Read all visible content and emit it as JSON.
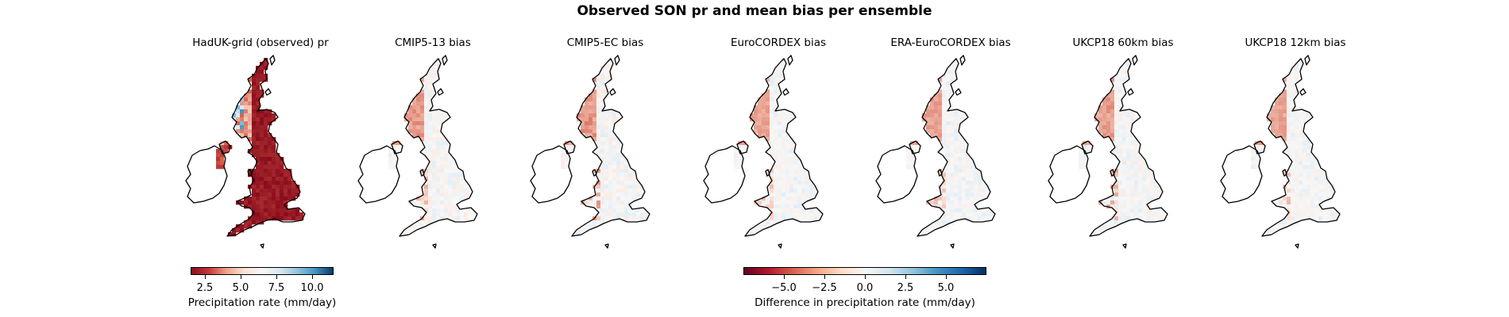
{
  "figure": {
    "title": "Observed SON pr and mean bias per ensemble"
  },
  "panels": [
    {
      "title": "HadUK-grid (observed) pr",
      "kind": "observed"
    },
    {
      "title": "CMIP5-13 bias",
      "kind": "bias",
      "strength": 0.55
    },
    {
      "title": "CMIP5-EC bias",
      "kind": "bias",
      "strength": 0.65
    },
    {
      "title": "EuroCORDEX bias",
      "kind": "bias",
      "strength": 0.35
    },
    {
      "title": "ERA-EuroCORDEX bias",
      "kind": "bias",
      "strength": 0.4
    },
    {
      "title": "UKCP18 60km bias",
      "kind": "bias",
      "strength": 0.5
    },
    {
      "title": "UKCP18 12km bias",
      "kind": "bias",
      "strength": 0.35
    }
  ],
  "colorbars": {
    "observed": {
      "label": "Precipitation rate (mm/day)",
      "colormap": "RdBu",
      "range": [
        1.5,
        11.5
      ],
      "ticks": [
        "2.5",
        "5.0",
        "7.5",
        "10.0"
      ],
      "tick_values": [
        2.5,
        5.0,
        7.5,
        10.0
      ]
    },
    "bias": {
      "label": "Difference in precipitation rate (mm/day)",
      "colormap": "RdBu",
      "range": [
        -7.5,
        7.5
      ],
      "ticks": [
        "−5.0",
        "−2.5",
        "0.0",
        "2.5",
        "5.0"
      ],
      "tick_values": [
        -5.0,
        -2.5,
        0.0,
        2.5,
        5.0
      ]
    }
  },
  "colors": {
    "dark_red": "#8a0c1c",
    "mid_red": "#d6604d",
    "pale_red": "#fbe3d6",
    "white": "#f7f7f7",
    "pale_blue": "#e3eef6",
    "mid_blue": "#4393c3",
    "dark_blue": "#0b3a6e",
    "coastline": "#000000"
  }
}
